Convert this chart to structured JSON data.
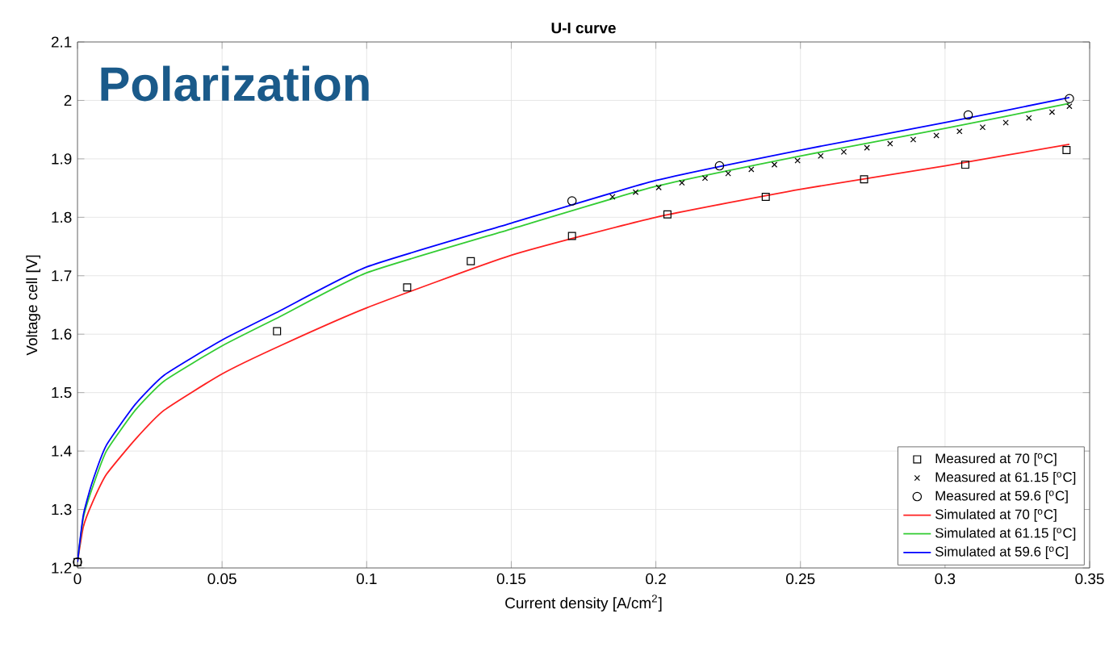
{
  "chart_data": {
    "type": "line",
    "title": "U-I curve",
    "xlabel": "Current density [A/cm$^{2}$]",
    "ylabel": "Voltage cell [V]",
    "annotations": [
      "Polarization"
    ],
    "xlim": [
      0,
      0.35
    ],
    "ylim": [
      1.2,
      2.1
    ],
    "xticks": [
      0,
      0.05,
      0.1,
      0.15,
      0.2,
      0.25,
      0.3,
      0.35
    ],
    "yticks": [
      1.2,
      1.3,
      1.4,
      1.5,
      1.6,
      1.7,
      1.8,
      1.9,
      2,
      2.1
    ],
    "grid": true,
    "legend": "bottom right",
    "series": [
      {
        "name": "Measured at 70 [$^{o}$C]",
        "type": "scatter",
        "marker": "square",
        "color": "#000000",
        "x": [
          0,
          0.069,
          0.114,
          0.136,
          0.171,
          0.204,
          0.238,
          0.272,
          0.307,
          0.342
        ],
        "values": [
          1.21,
          1.605,
          1.68,
          1.725,
          1.768,
          1.805,
          1.835,
          1.865,
          1.89,
          1.915
        ]
      },
      {
        "name": "Measured at 61.15 [$^{o}$C]",
        "type": "scatter",
        "marker": "cross",
        "color": "#000000",
        "x": [
          0.185,
          0.193,
          0.201,
          0.209,
          0.217,
          0.225,
          0.233,
          0.241,
          0.249,
          0.257,
          0.265,
          0.273,
          0.281,
          0.289,
          0.297,
          0.305,
          0.313,
          0.321,
          0.329,
          0.337,
          0.343
        ],
        "values": [
          1.835,
          1.843,
          1.851,
          1.859,
          1.867,
          1.875,
          1.882,
          1.89,
          1.897,
          1.905,
          1.912,
          1.919,
          1.926,
          1.933,
          1.94,
          1.947,
          1.954,
          1.962,
          1.97,
          1.98,
          1.99
        ]
      },
      {
        "name": "Measured at 59.6 [$^{o}$C]",
        "type": "scatter",
        "marker": "circle",
        "color": "#000000",
        "x": [
          0,
          0.171,
          0.222,
          0.308,
          0.343
        ],
        "values": [
          1.21,
          1.828,
          1.888,
          1.975,
          2.003
        ]
      },
      {
        "name": "Simulated at 70 [$^{o}$C]",
        "marker": "none",
        "color": "#ff2020",
        "x": [
          0,
          0.002,
          0.005,
          0.01,
          0.02,
          0.03,
          0.05,
          0.07,
          0.1,
          0.15,
          0.2,
          0.25,
          0.3,
          0.343
        ],
        "values": [
          1.21,
          1.27,
          1.31,
          1.36,
          1.42,
          1.47,
          1.532,
          1.58,
          1.645,
          1.735,
          1.8,
          1.848,
          1.888,
          1.925
        ]
      },
      {
        "name": "Simulated at 61.15 [$^{o}$C]",
        "marker": "none",
        "color": "#33cc33",
        "x": [
          0,
          0.002,
          0.005,
          0.01,
          0.02,
          0.03,
          0.05,
          0.07,
          0.1,
          0.15,
          0.2,
          0.25,
          0.3,
          0.343
        ],
        "values": [
          1.21,
          1.285,
          1.335,
          1.4,
          1.47,
          1.52,
          1.58,
          1.63,
          1.705,
          1.78,
          1.853,
          1.905,
          1.952,
          1.995
        ]
      },
      {
        "name": "Simulated at 59.6 [$^{o}$C]",
        "marker": "none",
        "color": "#0000ff",
        "x": [
          0,
          0.002,
          0.005,
          0.01,
          0.02,
          0.03,
          0.05,
          0.07,
          0.1,
          0.15,
          0.2,
          0.25,
          0.3,
          0.343
        ],
        "values": [
          1.21,
          1.29,
          1.345,
          1.41,
          1.48,
          1.53,
          1.59,
          1.64,
          1.715,
          1.79,
          1.863,
          1.915,
          1.962,
          2.005
        ]
      }
    ]
  }
}
